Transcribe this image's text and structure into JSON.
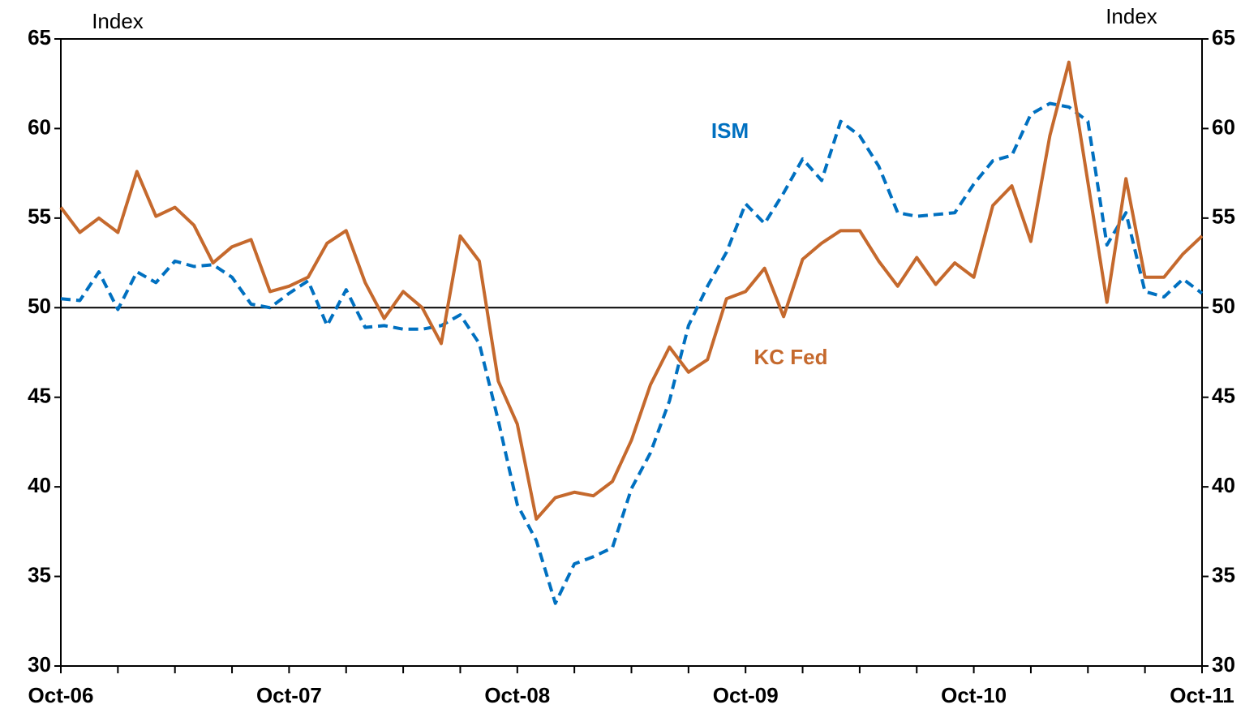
{
  "chart_data": {
    "type": "line",
    "y_label": "Index",
    "y2_label": "Index",
    "categories": [
      "Oct-06",
      null,
      null,
      null,
      null,
      null,
      null,
      null,
      null,
      null,
      null,
      null,
      "Oct-07",
      null,
      null,
      null,
      null,
      null,
      null,
      null,
      null,
      null,
      null,
      null,
      "Oct-08",
      null,
      null,
      null,
      null,
      null,
      null,
      null,
      null,
      null,
      null,
      null,
      "Oct-09",
      null,
      null,
      null,
      null,
      null,
      null,
      null,
      null,
      null,
      null,
      null,
      "Oct-10",
      null,
      null,
      null,
      null,
      null,
      null,
      null,
      null,
      null,
      null,
      null,
      "Oct-11"
    ],
    "series": [
      {
        "name": "ISM",
        "color": "#0070c0",
        "dashed": true,
        "values": [
          50.5,
          50.4,
          52.0,
          49.9,
          52.0,
          51.4,
          52.6,
          52.3,
          52.4,
          51.7,
          50.2,
          50.0,
          50.8,
          51.5,
          49.0,
          51.0,
          48.9,
          49.0,
          48.8,
          48.8,
          49.0,
          49.6,
          48.0,
          43.7,
          39.0,
          37.0,
          33.5,
          35.7,
          36.1,
          36.6,
          39.9,
          41.9,
          44.8,
          49.0,
          51.2,
          53.1,
          55.8,
          54.7,
          56.4,
          58.3,
          57.1,
          60.4,
          59.6,
          57.9,
          55.3,
          55.1,
          55.2,
          55.3,
          56.9,
          58.2,
          58.5,
          60.8,
          61.4,
          61.2,
          60.4,
          53.5,
          55.3,
          50.9,
          50.6,
          51.6,
          50.8
        ]
      },
      {
        "name": "KC Fed",
        "color": "#c5692d",
        "dashed": false,
        "values": [
          55.6,
          54.2,
          55.0,
          54.2,
          57.6,
          55.1,
          55.6,
          54.6,
          52.5,
          53.4,
          53.8,
          50.9,
          51.2,
          51.7,
          53.6,
          54.3,
          51.4,
          49.4,
          50.9,
          50.0,
          48.0,
          54.0,
          52.6,
          45.9,
          43.5,
          38.2,
          39.4,
          39.7,
          39.5,
          40.3,
          42.6,
          45.7,
          47.8,
          46.4,
          47.1,
          50.5,
          50.9,
          52.2,
          49.5,
          52.7,
          53.6,
          54.3,
          54.3,
          52.6,
          51.2,
          52.8,
          51.3,
          52.5,
          51.7,
          55.7,
          56.8,
          53.7,
          59.6,
          63.7,
          57.0,
          50.3,
          57.2,
          51.7,
          51.7,
          53.0,
          54.0
        ]
      }
    ],
    "ylim": [
      30,
      65
    ],
    "yticks": [
      30,
      35,
      40,
      45,
      50,
      55,
      60,
      65
    ],
    "y2lim": [
      30,
      65
    ],
    "y2ticks": [
      30,
      35,
      40,
      45,
      50,
      55,
      60,
      65
    ],
    "reference_line": 50,
    "grid": false
  }
}
